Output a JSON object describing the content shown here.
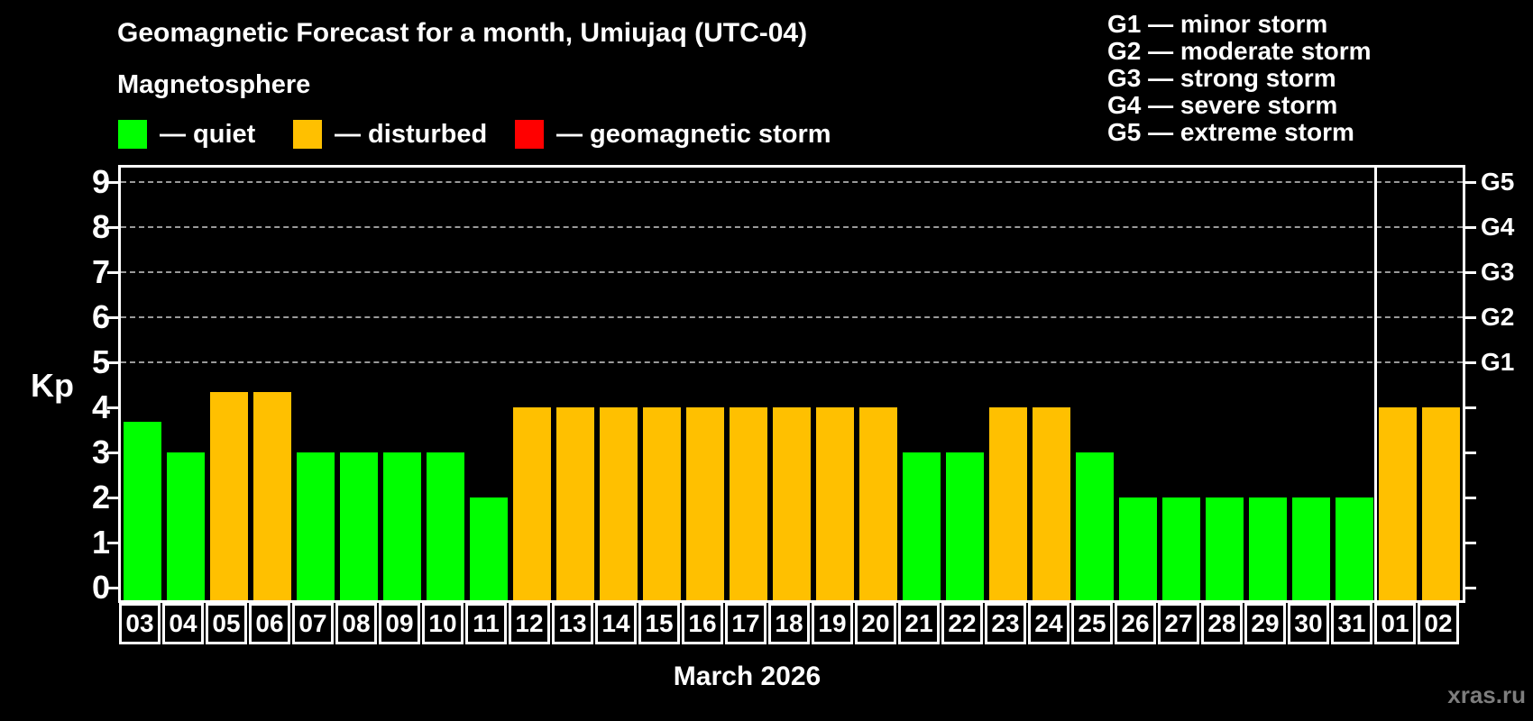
{
  "title": "Geomagnetic Forecast for a month, Umiujaq (UTC-04)",
  "subtitle": "Magnetosphere",
  "legend": {
    "items": [
      {
        "id": "quiet",
        "label": "— quiet",
        "color": "#00ff00"
      },
      {
        "id": "disturbed",
        "label": "— disturbed",
        "color": "#ffc000"
      },
      {
        "id": "storm",
        "label": "— geomagnetic storm",
        "color": "#ff0000"
      }
    ]
  },
  "storm_scale_legend": {
    "lines": [
      "G1 — minor storm",
      "G2 — moderate storm",
      "G3 — strong storm",
      "G4 — severe storm",
      "G5 — extreme storm"
    ]
  },
  "watermark": "xras.ru",
  "chart_data": {
    "type": "bar",
    "title": "Geomagnetic Forecast for a month, Umiujaq (UTC-04)",
    "ylabel": "Kp",
    "xlabel": "March 2026",
    "ylim": [
      0,
      9
    ],
    "yticks": [
      0,
      1,
      2,
      3,
      4,
      5,
      6,
      7,
      8,
      9
    ],
    "gridlines_at_kp": [
      5,
      6,
      7,
      8,
      9
    ],
    "right_axis_labels": [
      {
        "kp": 5,
        "label": "G1"
      },
      {
        "kp": 6,
        "label": "G2"
      },
      {
        "kp": 7,
        "label": "G3"
      },
      {
        "kp": 8,
        "label": "G4"
      },
      {
        "kp": 9,
        "label": "G5"
      }
    ],
    "status_colors": {
      "quiet": "#00ff00",
      "disturbed": "#ffc000",
      "storm": "#ff0000"
    },
    "month_boundary_after_index": 28,
    "grid_color": "#9a9a9a",
    "axis_color": "#ffffff",
    "bars": [
      {
        "date": "03",
        "kp": 3.67,
        "status": "quiet"
      },
      {
        "date": "04",
        "kp": 3,
        "status": "quiet"
      },
      {
        "date": "05",
        "kp": 4.33,
        "status": "disturbed"
      },
      {
        "date": "06",
        "kp": 4.33,
        "status": "disturbed"
      },
      {
        "date": "07",
        "kp": 3,
        "status": "quiet"
      },
      {
        "date": "08",
        "kp": 3,
        "status": "quiet"
      },
      {
        "date": "09",
        "kp": 3,
        "status": "quiet"
      },
      {
        "date": "10",
        "kp": 3,
        "status": "quiet"
      },
      {
        "date": "11",
        "kp": 2,
        "status": "quiet"
      },
      {
        "date": "12",
        "kp": 4,
        "status": "disturbed"
      },
      {
        "date": "13",
        "kp": 4,
        "status": "disturbed"
      },
      {
        "date": "14",
        "kp": 4,
        "status": "disturbed"
      },
      {
        "date": "15",
        "kp": 4,
        "status": "disturbed"
      },
      {
        "date": "16",
        "kp": 4,
        "status": "disturbed"
      },
      {
        "date": "17",
        "kp": 4,
        "status": "disturbed"
      },
      {
        "date": "18",
        "kp": 4,
        "status": "disturbed"
      },
      {
        "date": "19",
        "kp": 4,
        "status": "disturbed"
      },
      {
        "date": "20",
        "kp": 4,
        "status": "disturbed"
      },
      {
        "date": "21",
        "kp": 3,
        "status": "quiet"
      },
      {
        "date": "22",
        "kp": 3,
        "status": "quiet"
      },
      {
        "date": "23",
        "kp": 4,
        "status": "disturbed"
      },
      {
        "date": "24",
        "kp": 4,
        "status": "disturbed"
      },
      {
        "date": "25",
        "kp": 3,
        "status": "quiet"
      },
      {
        "date": "26",
        "kp": 2,
        "status": "quiet"
      },
      {
        "date": "27",
        "kp": 2,
        "status": "quiet"
      },
      {
        "date": "28",
        "kp": 2,
        "status": "quiet"
      },
      {
        "date": "29",
        "kp": 2,
        "status": "quiet"
      },
      {
        "date": "30",
        "kp": 2,
        "status": "quiet"
      },
      {
        "date": "31",
        "kp": 2,
        "status": "quiet"
      },
      {
        "date": "01",
        "kp": 4,
        "status": "disturbed"
      },
      {
        "date": "02",
        "kp": 4,
        "status": "disturbed"
      }
    ]
  }
}
